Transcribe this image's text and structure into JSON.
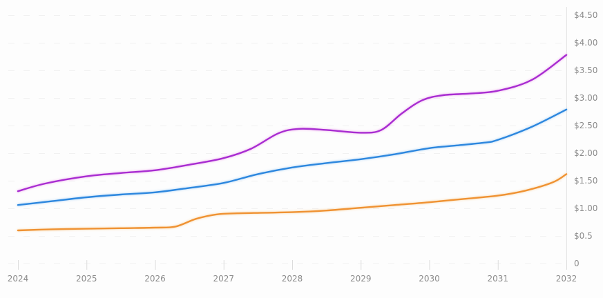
{
  "chart_data": {
    "type": "line",
    "title": "",
    "legend": "none",
    "x_axis": {
      "tick_labels": [
        "2024",
        "2025",
        "2026",
        "2027",
        "2028",
        "2029",
        "2030",
        "2031",
        "2032"
      ],
      "range": [
        2024,
        2032
      ]
    },
    "y_axis": {
      "side": "right",
      "tick_labels": [
        "$4.50",
        "$4.00",
        "$3.50",
        "$3.00",
        "$2.50",
        "$2.00",
        "$1.50",
        "$1.00",
        "$0.5",
        "0"
      ],
      "tick_values": [
        4.5,
        4.0,
        3.5,
        3.0,
        2.5,
        2.0,
        1.5,
        1.0,
        0.5,
        0
      ],
      "range": [
        0,
        4.5
      ],
      "unit": "$"
    },
    "grid": {
      "horizontal_dashed": true,
      "vertical": false
    },
    "series": [
      {
        "name": "purple-series",
        "color": "#a82dd1",
        "glow": "#f0a8ee",
        "points": [
          [
            2024,
            1.31
          ],
          [
            2024.4,
            1.45
          ],
          [
            2025,
            1.58
          ],
          [
            2025.5,
            1.64
          ],
          [
            2026,
            1.69
          ],
          [
            2026.5,
            1.79
          ],
          [
            2027,
            1.91
          ],
          [
            2027.4,
            2.08
          ],
          [
            2027.8,
            2.36
          ],
          [
            2028.1,
            2.44
          ],
          [
            2028.5,
            2.42
          ],
          [
            2029,
            2.37
          ],
          [
            2029.3,
            2.42
          ],
          [
            2029.6,
            2.72
          ],
          [
            2029.9,
            2.96
          ],
          [
            2030.2,
            3.05
          ],
          [
            2030.6,
            3.08
          ],
          [
            2031,
            3.13
          ],
          [
            2031.5,
            3.33
          ],
          [
            2032,
            3.78
          ]
        ]
      },
      {
        "name": "blue-series",
        "color": "#2d87de",
        "glow": "#a9d2f7",
        "points": [
          [
            2024,
            1.06
          ],
          [
            2024.5,
            1.13
          ],
          [
            2025,
            1.2
          ],
          [
            2025.5,
            1.25
          ],
          [
            2026,
            1.29
          ],
          [
            2026.5,
            1.37
          ],
          [
            2027,
            1.46
          ],
          [
            2027.5,
            1.62
          ],
          [
            2028,
            1.74
          ],
          [
            2028.5,
            1.82
          ],
          [
            2029,
            1.89
          ],
          [
            2029.5,
            1.98
          ],
          [
            2030,
            2.09
          ],
          [
            2030.4,
            2.14
          ],
          [
            2030.8,
            2.19
          ],
          [
            2031,
            2.24
          ],
          [
            2031.5,
            2.48
          ],
          [
            2032,
            2.79
          ]
        ]
      },
      {
        "name": "orange-series",
        "color": "#ef9233",
        "glow": "#fbd6a4",
        "points": [
          [
            2024,
            0.6
          ],
          [
            2024.5,
            0.62
          ],
          [
            2025,
            0.63
          ],
          [
            2025.5,
            0.64
          ],
          [
            2026,
            0.65
          ],
          [
            2026.3,
            0.67
          ],
          [
            2026.6,
            0.81
          ],
          [
            2026.9,
            0.89
          ],
          [
            2027.2,
            0.91
          ],
          [
            2027.6,
            0.92
          ],
          [
            2028,
            0.93
          ],
          [
            2028.5,
            0.96
          ],
          [
            2029,
            1.01
          ],
          [
            2029.5,
            1.06
          ],
          [
            2030,
            1.11
          ],
          [
            2030.5,
            1.17
          ],
          [
            2031,
            1.23
          ],
          [
            2031.4,
            1.32
          ],
          [
            2031.8,
            1.47
          ],
          [
            2032,
            1.62
          ]
        ]
      }
    ]
  },
  "styles": {
    "background": "#fdfdfd",
    "label_color": "#8b8b8b",
    "axis_color": "#e3e3e3",
    "grid_color": "#f1f1f1",
    "tick_color": "#dcdcdc"
  }
}
